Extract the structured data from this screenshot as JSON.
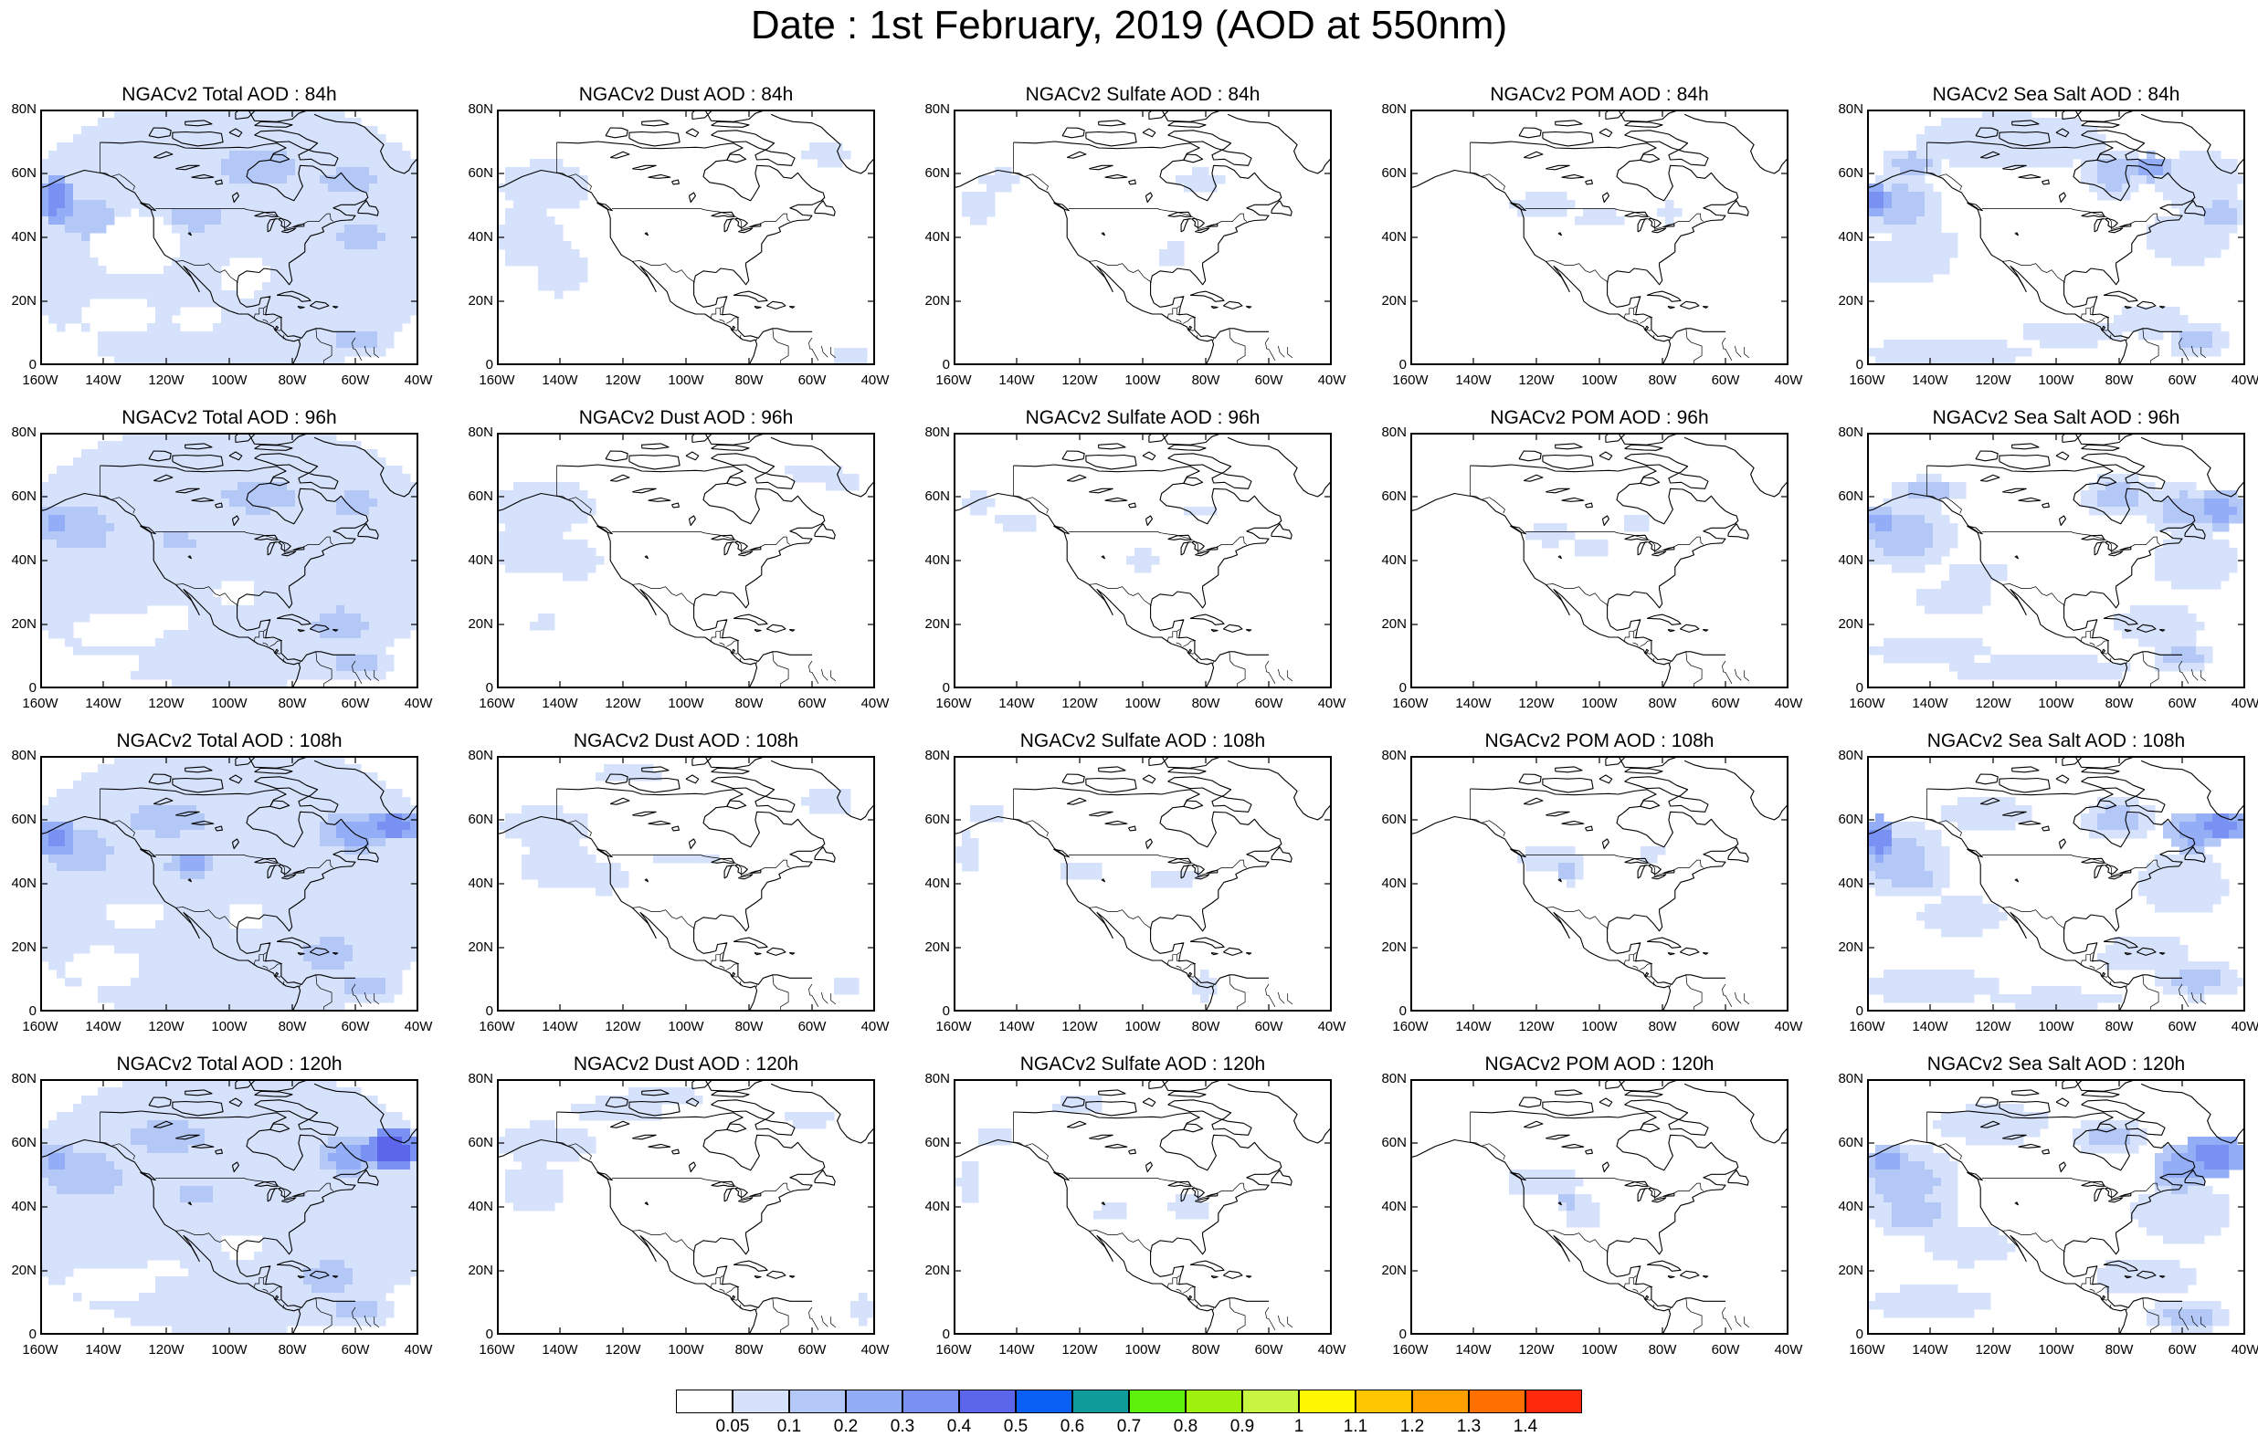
{
  "title": "Date : 1st February, 2019 (AOD at 550nm)",
  "rows": [
    {
      "hour": "84h",
      "titles": [
        "NGACv2 Total AOD : 84h",
        "NGACv2 Dust AOD : 84h",
        "NGACv2 Sulfate AOD : 84h",
        "NGACv2 POM AOD : 84h",
        "NGACv2 Sea Salt AOD : 84h"
      ]
    },
    {
      "hour": "96h",
      "titles": [
        "NGACv2 Total AOD : 96h",
        "NGACv2 Dust AOD : 96h",
        "NGACv2 Sulfate AOD : 96h",
        "NGACv2 POM AOD : 96h",
        "NGACv2 Sea Salt AOD : 96h"
      ]
    },
    {
      "hour": "108h",
      "titles": [
        "NGACv2 Total AOD : 108h",
        "NGACv2 Dust AOD : 108h",
        "NGACv2 Sulfate AOD : 108h",
        "NGACv2 POM AOD : 108h",
        "NGACv2 Sea Salt AOD : 108h"
      ]
    },
    {
      "hour": "120h",
      "titles": [
        "NGACv2 Total AOD : 120h",
        "NGACv2 Dust AOD : 120h",
        "NGACv2 Sulfate AOD : 120h",
        "NGACv2 POM AOD : 120h",
        "NGACv2 Sea Salt  AOD : 120h"
      ]
    }
  ],
  "species": [
    "Total",
    "Dust",
    "Sulfate",
    "POM",
    "Sea Salt"
  ],
  "y_ticks": [
    "80N",
    "60N",
    "40N",
    "20N",
    "0"
  ],
  "x_ticks": [
    "160W",
    "140W",
    "120W",
    "100W",
    "80W",
    "60W",
    "40W"
  ],
  "colorbar": {
    "colors": [
      "#ffffff",
      "#d6e2fb",
      "#b4c8f8",
      "#93aef6",
      "#7891f2",
      "#5c66ea",
      "#0a5ff5",
      "#0f9b99",
      "#5df10c",
      "#9ff00e",
      "#c8f442",
      "#fff600",
      "#ffc500",
      "#ff9f00",
      "#ff7000",
      "#ff2a0c"
    ],
    "labels": [
      "0.05",
      "0.1",
      "0.2",
      "0.3",
      "0.4",
      "0.5",
      "0.6",
      "0.7",
      "0.8",
      "0.9",
      "1",
      "1.1",
      "1.2",
      "1.3",
      "1.4"
    ]
  }
}
